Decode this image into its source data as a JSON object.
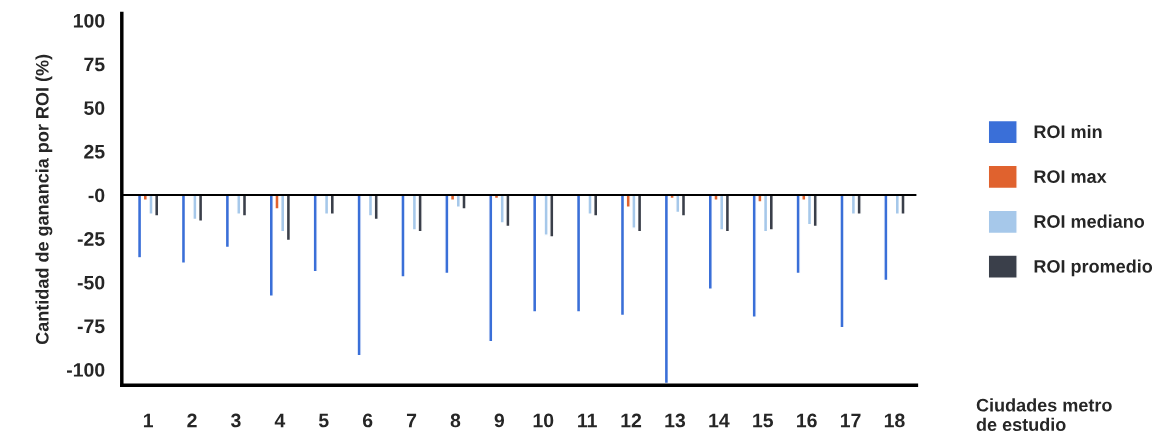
{
  "chart_data": {
    "type": "bar",
    "ylabel": "Cantidad de ganancia por ROI (%)",
    "xlabel": "Ciudades metro\nde estudio",
    "categories": [
      "1",
      "2",
      "3",
      "4",
      "5",
      "6",
      "7",
      "8",
      "9",
      "10",
      "11",
      "12",
      "13",
      "14",
      "15",
      "16",
      "17",
      "18"
    ],
    "series": [
      {
        "name": "ROI min",
        "color": "#3a6fd8",
        "values": [
          -36,
          -39,
          -30,
          -58,
          -44,
          -92,
          -47,
          -45,
          -84,
          -67,
          -67,
          -69,
          -108,
          -54,
          -70,
          -45,
          -76,
          -49
        ]
      },
      {
        "name": "ROI max",
        "color": "#e0622e",
        "values": [
          -3,
          null,
          null,
          -8,
          null,
          null,
          null,
          -3,
          -2,
          null,
          null,
          -7,
          -2,
          -3,
          -4,
          -3,
          null,
          null
        ]
      },
      {
        "name": "ROI mediano",
        "color": "#a6c8ea",
        "values": [
          -11,
          -14,
          -11,
          -21,
          -11,
          -12,
          -20,
          -7,
          -16,
          -23,
          -11,
          -19,
          -10,
          -20,
          -21,
          -17,
          -11,
          -11
        ]
      },
      {
        "name": "ROI promedio",
        "color": "#3a3f4a",
        "values": [
          -12,
          -15,
          -12,
          -26,
          -11,
          -14,
          -21,
          -8,
          -18,
          -24,
          -12,
          -21,
          -12,
          -21,
          -20,
          -18,
          -11,
          -11
        ]
      }
    ],
    "ylim": [
      -109,
      104
    ],
    "yticks": [
      100,
      75,
      50,
      25,
      {
        "value": 0,
        "label": "-0"
      },
      -25,
      -50,
      -75,
      -100
    ],
    "ref_lines": [
      {
        "axis": "y",
        "value": 0,
        "color": "#000000"
      }
    ],
    "grid": false,
    "legend": "right"
  }
}
